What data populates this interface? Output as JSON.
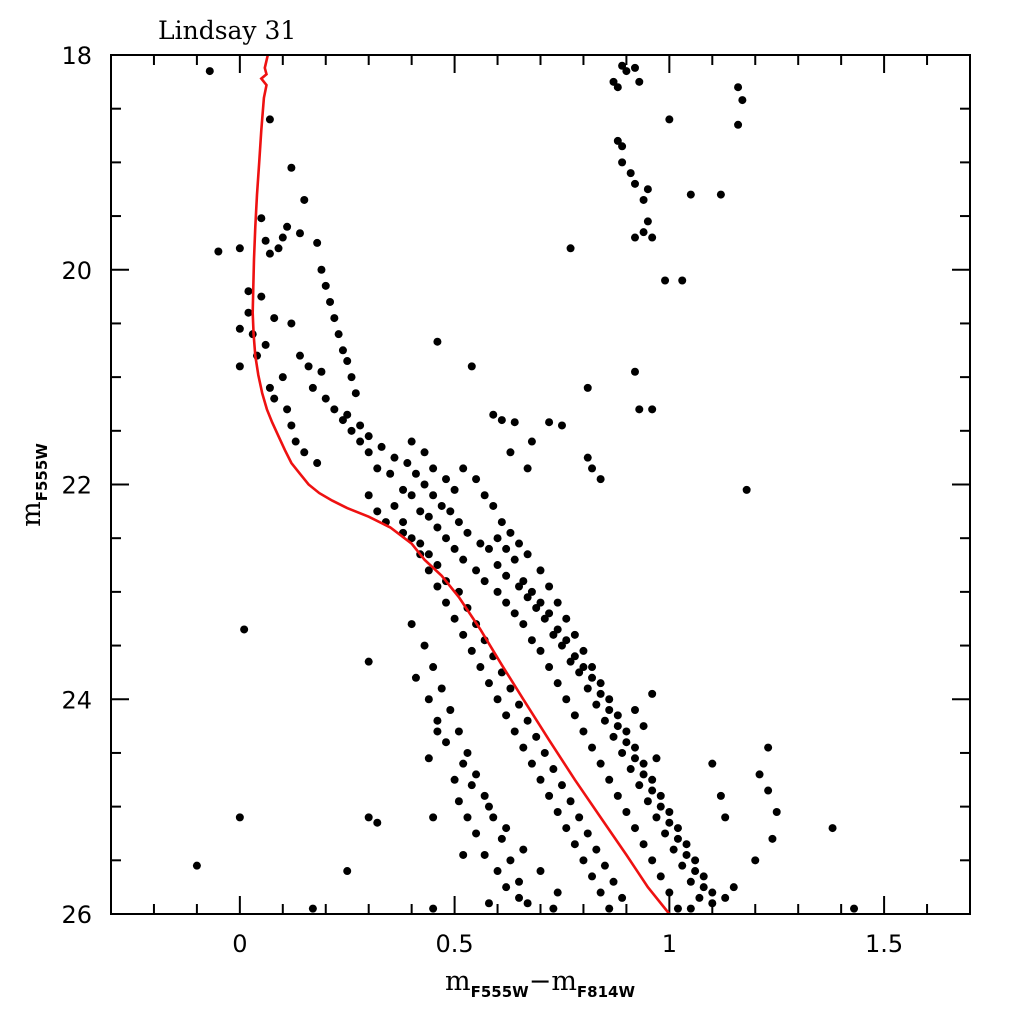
{
  "chart_data": {
    "type": "scatter",
    "title": "Lindsay 31",
    "xlabel": {
      "main": "m",
      "sub1": "F555W",
      "minus": "−",
      "main2": "m",
      "sub2": "F814W"
    },
    "ylabel": {
      "main": "m",
      "sub": "F555W"
    },
    "xlim": [
      -0.3,
      1.7
    ],
    "ylim": [
      26,
      18
    ],
    "y_inverted": true,
    "x_ticks": [
      {
        "value": 0,
        "label": "0"
      },
      {
        "value": 0.5,
        "label": "0.5"
      },
      {
        "value": 1,
        "label": "1"
      },
      {
        "value": 1.5,
        "label": "1.5"
      }
    ],
    "y_ticks": [
      {
        "value": 18,
        "label": "18"
      },
      {
        "value": 20,
        "label": "20"
      },
      {
        "value": 22,
        "label": "22"
      },
      {
        "value": 24,
        "label": "24"
      },
      {
        "value": 26,
        "label": "26"
      }
    ],
    "x_minor_step": 0.1,
    "y_minor_step": 0.5,
    "grid": false,
    "colors": {
      "points": "#000000",
      "isochrone": "#ee1111",
      "frame": "#000000"
    },
    "isochrone": {
      "x": [
        0.065,
        0.058,
        0.062,
        0.05,
        0.062,
        0.056,
        0.05,
        0.045,
        0.04,
        0.036,
        0.033,
        0.031,
        0.03,
        0.032,
        0.036,
        0.043,
        0.052,
        0.063,
        0.075,
        0.09,
        0.105,
        0.12,
        0.14,
        0.16,
        0.185,
        0.215,
        0.25,
        0.3,
        0.35,
        0.4,
        0.43,
        0.47,
        0.51,
        0.56,
        0.61,
        0.66,
        0.72,
        0.78,
        0.84,
        0.9,
        0.95,
        1.0
      ],
      "y": [
        18.0,
        18.12,
        18.18,
        18.22,
        18.28,
        18.4,
        18.7,
        19.0,
        19.3,
        19.6,
        19.9,
        20.2,
        20.4,
        20.6,
        20.8,
        20.98,
        21.15,
        21.3,
        21.42,
        21.55,
        21.68,
        21.8,
        21.9,
        22.0,
        22.08,
        22.15,
        22.22,
        22.3,
        22.4,
        22.55,
        22.7,
        22.85,
        23.05,
        23.35,
        23.68,
        24.0,
        24.38,
        24.75,
        25.1,
        25.45,
        25.75,
        26.0
      ]
    },
    "stars": [
      [
        -0.07,
        18.15
      ],
      [
        -0.05,
        19.83
      ],
      [
        0.0,
        19.8
      ],
      [
        0.07,
        18.6
      ],
      [
        0.05,
        19.52
      ],
      [
        0.07,
        19.85
      ],
      [
        0.09,
        19.8
      ],
      [
        0.1,
        19.7
      ],
      [
        0.06,
        19.73
      ],
      [
        0.11,
        19.6
      ],
      [
        0.12,
        19.05
      ],
      [
        0.14,
        19.66
      ],
      [
        0.15,
        19.35
      ],
      [
        0.18,
        19.75
      ],
      [
        0.02,
        20.2
      ],
      [
        0.05,
        20.25
      ],
      [
        0.0,
        20.55
      ],
      [
        0.0,
        20.9
      ],
      [
        0.04,
        20.8
      ],
      [
        0.03,
        20.6
      ],
      [
        0.02,
        20.4
      ],
      [
        0.08,
        20.45
      ],
      [
        0.06,
        20.7
      ],
      [
        0.1,
        21.0
      ],
      [
        0.07,
        21.1
      ],
      [
        0.08,
        21.2
      ],
      [
        0.11,
        21.3
      ],
      [
        0.12,
        21.45
      ],
      [
        0.13,
        21.6
      ],
      [
        0.15,
        21.7
      ],
      [
        0.18,
        21.8
      ],
      [
        0.12,
        20.5
      ],
      [
        0.14,
        20.8
      ],
      [
        0.16,
        20.9
      ],
      [
        0.19,
        20.95
      ],
      [
        0.17,
        21.1
      ],
      [
        0.2,
        21.2
      ],
      [
        0.22,
        21.3
      ],
      [
        0.24,
        21.4
      ],
      [
        0.26,
        21.5
      ],
      [
        0.28,
        21.6
      ],
      [
        0.3,
        21.7
      ],
      [
        0.32,
        21.85
      ],
      [
        0.35,
        21.9
      ],
      [
        0.38,
        22.05
      ],
      [
        0.4,
        22.1
      ],
      [
        0.42,
        22.25
      ],
      [
        0.44,
        22.3
      ],
      [
        0.46,
        22.4
      ],
      [
        0.48,
        22.5
      ],
      [
        0.5,
        22.6
      ],
      [
        0.52,
        22.7
      ],
      [
        0.55,
        22.8
      ],
      [
        0.57,
        22.9
      ],
      [
        0.6,
        23.0
      ],
      [
        0.62,
        23.1
      ],
      [
        0.64,
        23.2
      ],
      [
        0.66,
        23.3
      ],
      [
        0.68,
        23.45
      ],
      [
        0.7,
        23.55
      ],
      [
        0.72,
        23.7
      ],
      [
        0.74,
        23.85
      ],
      [
        0.76,
        24.0
      ],
      [
        0.78,
        24.15
      ],
      [
        0.8,
        24.3
      ],
      [
        0.82,
        24.45
      ],
      [
        0.84,
        24.6
      ],
      [
        0.86,
        24.75
      ],
      [
        0.88,
        24.9
      ],
      [
        0.9,
        25.05
      ],
      [
        0.92,
        25.2
      ],
      [
        0.94,
        25.35
      ],
      [
        0.96,
        25.5
      ],
      [
        0.98,
        25.65
      ],
      [
        1.0,
        25.8
      ],
      [
        1.02,
        25.95
      ],
      [
        0.19,
        20.0
      ],
      [
        0.2,
        20.15
      ],
      [
        0.21,
        20.3
      ],
      [
        0.22,
        20.45
      ],
      [
        0.23,
        20.6
      ],
      [
        0.24,
        20.75
      ],
      [
        0.25,
        20.85
      ],
      [
        0.26,
        21.0
      ],
      [
        0.27,
        21.15
      ],
      [
        0.25,
        21.35
      ],
      [
        0.28,
        21.45
      ],
      [
        0.3,
        21.55
      ],
      [
        0.33,
        21.65
      ],
      [
        0.36,
        21.75
      ],
      [
        0.39,
        21.8
      ],
      [
        0.41,
        21.9
      ],
      [
        0.43,
        22.0
      ],
      [
        0.45,
        22.1
      ],
      [
        0.47,
        22.2
      ],
      [
        0.49,
        22.25
      ],
      [
        0.51,
        22.35
      ],
      [
        0.53,
        22.45
      ],
      [
        0.56,
        22.55
      ],
      [
        0.58,
        22.6
      ],
      [
        0.6,
        22.75
      ],
      [
        0.62,
        22.85
      ],
      [
        0.65,
        22.95
      ],
      [
        0.67,
        23.05
      ],
      [
        0.69,
        23.15
      ],
      [
        0.71,
        23.25
      ],
      [
        0.73,
        23.4
      ],
      [
        0.75,
        23.5
      ],
      [
        0.77,
        23.65
      ],
      [
        0.79,
        23.75
      ],
      [
        0.81,
        23.9
      ],
      [
        0.83,
        24.05
      ],
      [
        0.85,
        24.2
      ],
      [
        0.87,
        24.35
      ],
      [
        0.89,
        24.5
      ],
      [
        0.91,
        24.65
      ],
      [
        0.93,
        24.8
      ],
      [
        0.95,
        24.95
      ],
      [
        0.97,
        25.1
      ],
      [
        0.99,
        25.25
      ],
      [
        1.01,
        25.4
      ],
      [
        1.03,
        25.55
      ],
      [
        1.05,
        25.7
      ],
      [
        1.07,
        25.85
      ],
      [
        0.36,
        22.2
      ],
      [
        0.38,
        22.35
      ],
      [
        0.4,
        22.5
      ],
      [
        0.42,
        22.65
      ],
      [
        0.44,
        22.8
      ],
      [
        0.46,
        22.95
      ],
      [
        0.48,
        23.1
      ],
      [
        0.5,
        23.25
      ],
      [
        0.52,
        23.4
      ],
      [
        0.54,
        23.55
      ],
      [
        0.56,
        23.7
      ],
      [
        0.58,
        23.85
      ],
      [
        0.6,
        24.0
      ],
      [
        0.62,
        24.15
      ],
      [
        0.64,
        24.3
      ],
      [
        0.66,
        24.45
      ],
      [
        0.68,
        24.6
      ],
      [
        0.7,
        24.75
      ],
      [
        0.72,
        24.9
      ],
      [
        0.74,
        25.05
      ],
      [
        0.76,
        25.2
      ],
      [
        0.78,
        25.35
      ],
      [
        0.8,
        25.5
      ],
      [
        0.82,
        25.65
      ],
      [
        0.84,
        25.8
      ],
      [
        0.86,
        25.95
      ],
      [
        0.4,
        21.6
      ],
      [
        0.43,
        21.7
      ],
      [
        0.45,
        21.85
      ],
      [
        0.48,
        21.95
      ],
      [
        0.5,
        22.05
      ],
      [
        0.52,
        21.85
      ],
      [
        0.55,
        21.95
      ],
      [
        0.57,
        22.1
      ],
      [
        0.59,
        22.2
      ],
      [
        0.61,
        22.35
      ],
      [
        0.63,
        22.45
      ],
      [
        0.65,
        22.55
      ],
      [
        0.67,
        22.65
      ],
      [
        0.7,
        22.8
      ],
      [
        0.72,
        22.95
      ],
      [
        0.74,
        23.1
      ],
      [
        0.76,
        23.25
      ],
      [
        0.78,
        23.4
      ],
      [
        0.8,
        23.55
      ],
      [
        0.82,
        23.7
      ],
      [
        0.84,
        23.85
      ],
      [
        0.86,
        24.0
      ],
      [
        0.88,
        24.15
      ],
      [
        0.9,
        24.3
      ],
      [
        0.92,
        24.45
      ],
      [
        0.94,
        24.6
      ],
      [
        0.96,
        24.75
      ],
      [
        0.98,
        24.9
      ],
      [
        1.0,
        25.05
      ],
      [
        1.02,
        25.2
      ],
      [
        1.04,
        25.35
      ],
      [
        1.06,
        25.5
      ],
      [
        1.08,
        25.65
      ],
      [
        1.1,
        25.8
      ],
      [
        0.3,
        22.1
      ],
      [
        0.32,
        22.25
      ],
      [
        0.34,
        22.35
      ],
      [
        0.38,
        22.45
      ],
      [
        0.42,
        22.55
      ],
      [
        0.44,
        22.65
      ],
      [
        0.46,
        22.75
      ],
      [
        0.48,
        22.9
      ],
      [
        0.51,
        23.0
      ],
      [
        0.53,
        23.15
      ],
      [
        0.55,
        23.3
      ],
      [
        0.57,
        23.45
      ],
      [
        0.59,
        23.6
      ],
      [
        0.61,
        23.75
      ],
      [
        0.63,
        23.9
      ],
      [
        0.65,
        24.05
      ],
      [
        0.67,
        24.2
      ],
      [
        0.69,
        24.35
      ],
      [
        0.71,
        24.5
      ],
      [
        0.73,
        24.65
      ],
      [
        0.75,
        24.8
      ],
      [
        0.77,
        24.95
      ],
      [
        0.79,
        25.1
      ],
      [
        0.81,
        25.25
      ],
      [
        0.83,
        25.4
      ],
      [
        0.85,
        25.55
      ],
      [
        0.87,
        25.7
      ],
      [
        0.89,
        25.85
      ],
      [
        0.91,
        26.0
      ],
      [
        0.4,
        23.3
      ],
      [
        0.43,
        23.5
      ],
      [
        0.45,
        23.7
      ],
      [
        0.47,
        23.9
      ],
      [
        0.49,
        24.1
      ],
      [
        0.51,
        24.3
      ],
      [
        0.53,
        24.5
      ],
      [
        0.55,
        24.7
      ],
      [
        0.57,
        24.9
      ],
      [
        0.59,
        25.1
      ],
      [
        0.61,
        25.3
      ],
      [
        0.63,
        25.5
      ],
      [
        0.65,
        25.7
      ],
      [
        0.67,
        25.9
      ],
      [
        0.44,
        24.0
      ],
      [
        0.46,
        24.2
      ],
      [
        0.48,
        24.4
      ],
      [
        0.52,
        24.6
      ],
      [
        0.54,
        24.8
      ],
      [
        0.58,
        25.0
      ],
      [
        0.62,
        25.2
      ],
      [
        0.66,
        25.4
      ],
      [
        0.7,
        25.6
      ],
      [
        0.74,
        25.8
      ],
      [
        0.78,
        26.0
      ],
      [
        0.6,
        22.5
      ],
      [
        0.62,
        22.6
      ],
      [
        0.64,
        22.7
      ],
      [
        0.66,
        22.9
      ],
      [
        0.68,
        23.0
      ],
      [
        0.7,
        23.1
      ],
      [
        0.72,
        23.2
      ],
      [
        0.74,
        23.35
      ],
      [
        0.76,
        23.45
      ],
      [
        0.78,
        23.6
      ],
      [
        0.8,
        23.7
      ],
      [
        0.82,
        23.8
      ],
      [
        0.84,
        23.95
      ],
      [
        0.86,
        24.1
      ],
      [
        0.88,
        24.25
      ],
      [
        0.9,
        24.4
      ],
      [
        0.92,
        24.55
      ],
      [
        0.94,
        24.7
      ],
      [
        0.96,
        24.85
      ],
      [
        0.98,
        25.0
      ],
      [
        1.0,
        25.15
      ],
      [
        1.02,
        25.3
      ],
      [
        1.04,
        25.45
      ],
      [
        1.06,
        25.6
      ],
      [
        1.08,
        25.75
      ],
      [
        1.1,
        25.9
      ],
      [
        0.76,
        18.02
      ],
      [
        0.87,
        18.25
      ],
      [
        0.88,
        18.3
      ],
      [
        0.9,
        18.15
      ],
      [
        0.89,
        18.1
      ],
      [
        0.92,
        18.12
      ],
      [
        0.93,
        18.25
      ],
      [
        1.0,
        18.6
      ],
      [
        1.15,
        18.02
      ],
      [
        1.16,
        18.3
      ],
      [
        1.17,
        18.42
      ],
      [
        1.16,
        18.65
      ],
      [
        0.89,
        18.85
      ],
      [
        0.88,
        18.8
      ],
      [
        0.89,
        19.0
      ],
      [
        0.91,
        19.1
      ],
      [
        0.92,
        19.2
      ],
      [
        0.95,
        19.25
      ],
      [
        0.94,
        19.35
      ],
      [
        0.95,
        19.55
      ],
      [
        0.94,
        19.65
      ],
      [
        0.92,
        19.7
      ],
      [
        0.96,
        19.7
      ],
      [
        1.05,
        19.3
      ],
      [
        1.12,
        19.3
      ],
      [
        0.77,
        19.8
      ],
      [
        0.99,
        20.1
      ],
      [
        1.03,
        20.1
      ],
      [
        0.46,
        20.67
      ],
      [
        0.54,
        20.9
      ],
      [
        0.59,
        21.35
      ],
      [
        0.61,
        21.4
      ],
      [
        0.64,
        21.42
      ],
      [
        0.63,
        21.7
      ],
      [
        0.72,
        21.42
      ],
      [
        0.75,
        21.45
      ],
      [
        0.68,
        21.6
      ],
      [
        0.67,
        21.85
      ],
      [
        0.81,
        21.1
      ],
      [
        0.92,
        20.95
      ],
      [
        0.93,
        21.3
      ],
      [
        0.96,
        21.3
      ],
      [
        0.81,
        21.75
      ],
      [
        0.82,
        21.85
      ],
      [
        0.84,
        21.95
      ],
      [
        1.18,
        22.05
      ],
      [
        0.01,
        23.35
      ],
      [
        0.3,
        23.65
      ],
      [
        0.41,
        23.8
      ],
      [
        0.46,
        24.3
      ],
      [
        0.44,
        24.55
      ],
      [
        0.5,
        24.75
      ],
      [
        0.51,
        24.95
      ],
      [
        0.53,
        25.1
      ],
      [
        0.55,
        25.25
      ],
      [
        0.57,
        25.45
      ],
      [
        0.6,
        25.6
      ],
      [
        0.62,
        25.75
      ],
      [
        0.96,
        23.95
      ],
      [
        0.92,
        24.1
      ],
      [
        0.94,
        24.25
      ],
      [
        0.97,
        24.55
      ],
      [
        1.23,
        24.45
      ],
      [
        1.21,
        24.7
      ],
      [
        1.23,
        24.85
      ],
      [
        1.25,
        25.05
      ],
      [
        1.24,
        25.3
      ],
      [
        1.2,
        25.5
      ],
      [
        1.38,
        25.2
      ],
      [
        1.1,
        24.6
      ],
      [
        1.12,
        24.9
      ],
      [
        1.13,
        25.1
      ],
      [
        0.0,
        25.1
      ],
      [
        0.3,
        25.1
      ],
      [
        0.32,
        25.15
      ],
      [
        0.45,
        25.1
      ],
      [
        0.52,
        25.45
      ],
      [
        -0.1,
        25.55
      ],
      [
        0.25,
        25.6
      ],
      [
        0.17,
        25.95
      ],
      [
        0.45,
        25.95
      ],
      [
        0.7,
        26.0
      ],
      [
        1.05,
        25.95
      ],
      [
        1.43,
        25.95
      ],
      [
        1.25,
        26.0
      ],
      [
        1.13,
        25.85
      ],
      [
        1.15,
        25.75
      ],
      [
        0.58,
        25.9
      ],
      [
        0.65,
        25.85
      ],
      [
        0.73,
        25.95
      ]
    ]
  }
}
